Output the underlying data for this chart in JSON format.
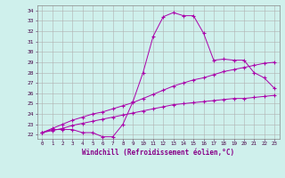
{
  "xlabel": "Windchill (Refroidissement éolien,°C)",
  "background_color": "#cff0ec",
  "grid_color": "#b0b0b0",
  "line_color": "#aa00aa",
  "hours": [
    0,
    1,
    2,
    3,
    4,
    5,
    6,
    7,
    8,
    9,
    10,
    11,
    12,
    13,
    14,
    15,
    16,
    17,
    18,
    19,
    20,
    21,
    22,
    23
  ],
  "windchill": [
    22.2,
    22.5,
    22.5,
    22.5,
    22.2,
    22.2,
    21.8,
    21.8,
    23.0,
    25.2,
    28.0,
    31.5,
    33.4,
    33.8,
    33.5,
    33.5,
    31.8,
    29.2,
    29.3,
    29.2,
    29.2,
    28.0,
    27.5,
    26.5
  ],
  "temp_line1": [
    22.2,
    22.4,
    22.6,
    22.9,
    23.1,
    23.3,
    23.5,
    23.7,
    23.9,
    24.1,
    24.3,
    24.5,
    24.7,
    24.9,
    25.0,
    25.1,
    25.2,
    25.3,
    25.4,
    25.5,
    25.5,
    25.6,
    25.7,
    25.8
  ],
  "temp_line2": [
    22.2,
    22.6,
    23.0,
    23.4,
    23.7,
    24.0,
    24.2,
    24.5,
    24.8,
    25.1,
    25.5,
    25.9,
    26.3,
    26.7,
    27.0,
    27.3,
    27.5,
    27.8,
    28.1,
    28.3,
    28.5,
    28.7,
    28.9,
    29.0
  ],
  "ylim_min": 21.6,
  "ylim_max": 34.5,
  "yticks": [
    22,
    23,
    24,
    25,
    26,
    27,
    28,
    29,
    30,
    31,
    32,
    33,
    34
  ]
}
